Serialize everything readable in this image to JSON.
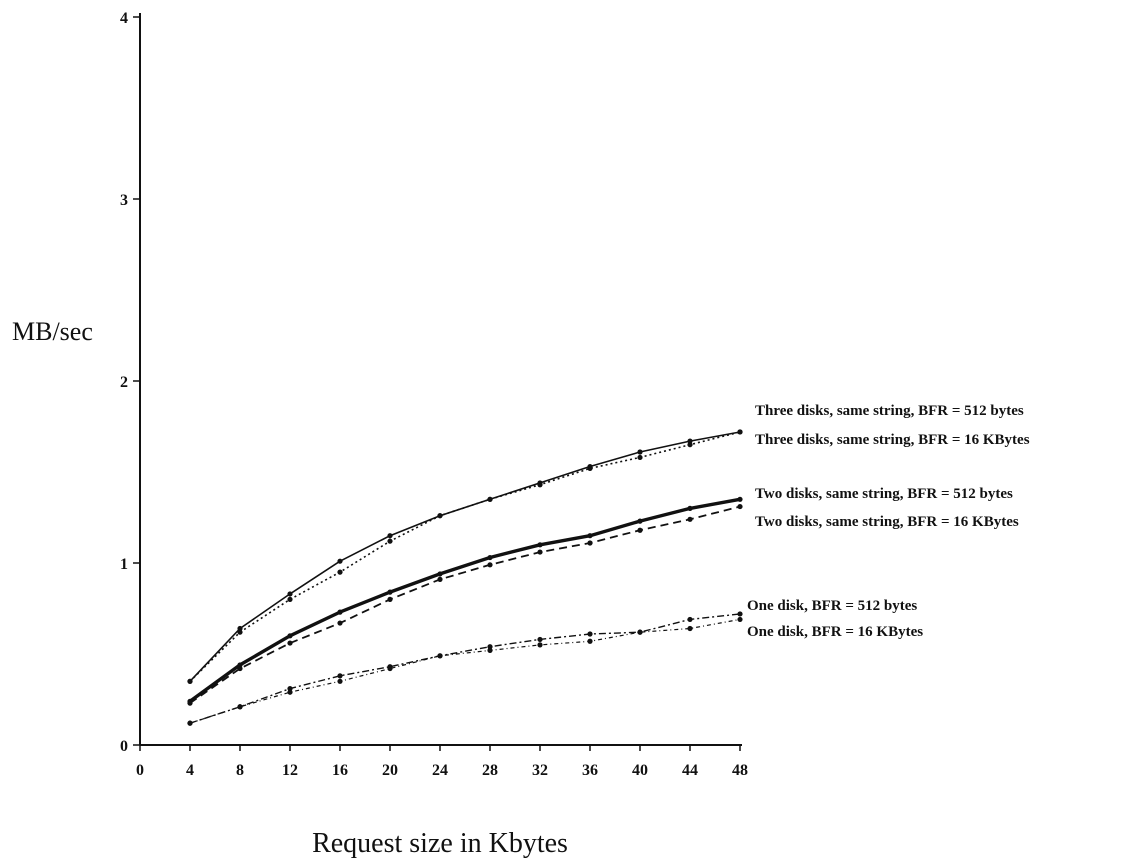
{
  "chart_data": {
    "type": "line",
    "title": "",
    "xlabel": "Request size in Kbytes",
    "ylabel": "MB/sec",
    "xlim": [
      0,
      48
    ],
    "ylim": [
      0,
      4
    ],
    "x_ticks": [
      "0",
      "4",
      "8",
      "12",
      "16",
      "20",
      "24",
      "28",
      "32",
      "36",
      "40",
      "44",
      "48"
    ],
    "y_ticks": [
      "0",
      "1",
      "2",
      "3",
      "4"
    ],
    "grid": false,
    "x": [
      4,
      8,
      12,
      16,
      20,
      24,
      28,
      32,
      36,
      40,
      44,
      48
    ],
    "series": [
      {
        "name": "Three disks, same string, BFR = 512 bytes",
        "style": "solid-thin",
        "values": [
          0.35,
          0.64,
          0.83,
          1.01,
          1.15,
          1.26,
          1.35,
          1.44,
          1.53,
          1.61,
          1.67,
          1.72
        ]
      },
      {
        "name": "Three disks, same string, BFR = 16 KBytes",
        "style": "dotted",
        "values": [
          0.35,
          0.62,
          0.8,
          0.95,
          1.12,
          1.26,
          1.35,
          1.43,
          1.52,
          1.58,
          1.65,
          1.72
        ]
      },
      {
        "name": "Two disks, same string, BFR = 512 bytes",
        "style": "solid-thick",
        "values": [
          0.24,
          0.44,
          0.6,
          0.73,
          0.84,
          0.94,
          1.03,
          1.1,
          1.15,
          1.23,
          1.3,
          1.35
        ]
      },
      {
        "name": "Two disks, same string, BFR = 16 KBytes",
        "style": "dashed",
        "values": [
          0.23,
          0.42,
          0.56,
          0.67,
          0.8,
          0.91,
          0.99,
          1.06,
          1.11,
          1.18,
          1.24,
          1.31
        ]
      },
      {
        "name": "One disk, BFR = 512 bytes",
        "style": "dash-dot",
        "values": [
          0.12,
          0.21,
          0.31,
          0.38,
          0.43,
          0.49,
          0.54,
          0.58,
          0.61,
          0.62,
          0.69,
          0.72
        ]
      },
      {
        "name": "One disk, BFR = 16 KBytes",
        "style": "dash-dot-light",
        "values": [
          0.12,
          0.21,
          0.29,
          0.35,
          0.42,
          0.49,
          0.52,
          0.55,
          0.57,
          0.62,
          0.64,
          0.69
        ]
      }
    ]
  }
}
